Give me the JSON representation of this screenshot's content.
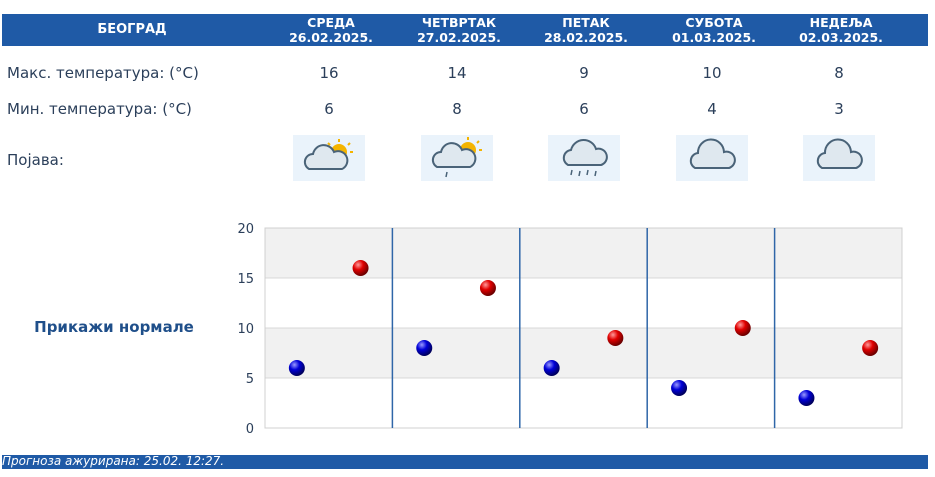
{
  "header": {
    "city": "БЕОГРАД"
  },
  "days": [
    {
      "name": "СРЕДА",
      "date": "26.02.2025.",
      "max": "16",
      "min": "6",
      "icon": "partly-cloudy-sun-icon"
    },
    {
      "name": "ЧЕТВРТАК",
      "date": "27.02.2025.",
      "max": "14",
      "min": "8",
      "icon": "partly-cloudy-sun-light-rain-icon"
    },
    {
      "name": "ПЕТАК",
      "date": "28.02.2025.",
      "max": "9",
      "min": "6",
      "icon": "cloud-rain-icon"
    },
    {
      "name": "СУБОТА",
      "date": "01.03.2025.",
      "max": "10",
      "min": "4",
      "icon": "cloud-icon"
    },
    {
      "name": "НЕДЕЉА",
      "date": "02.03.2025.",
      "max": "8",
      "min": "3",
      "icon": "cloud-icon"
    }
  ],
  "labels": {
    "max": "Макс. температура: (°C)",
    "min": "Мин. температура: (°C)",
    "phenomenon": "Појава:",
    "show_normals": "Прикажи нормале"
  },
  "colors": {
    "header": "#1f5aa6",
    "max_marker": "#d40000",
    "min_marker": "#0000c8",
    "divider": "#2f66a8"
  },
  "chart_data": {
    "type": "scatter",
    "categories": [
      "26.02.2025.",
      "27.02.2025.",
      "28.02.2025.",
      "01.03.2025.",
      "02.03.2025."
    ],
    "series": [
      {
        "values": [
          6,
          8,
          6,
          4,
          3
        ]
      },
      {
        "values": [
          16,
          14,
          9,
          10,
          8
        ]
      }
    ],
    "yticks": [
      "20",
      "15",
      "10",
      "5",
      "0"
    ],
    "ylim": [
      0,
      20
    ],
    "grid": true,
    "legend": "none"
  },
  "footer": {
    "text": "Прогноза ажурирана:  25.02. 12:27."
  }
}
